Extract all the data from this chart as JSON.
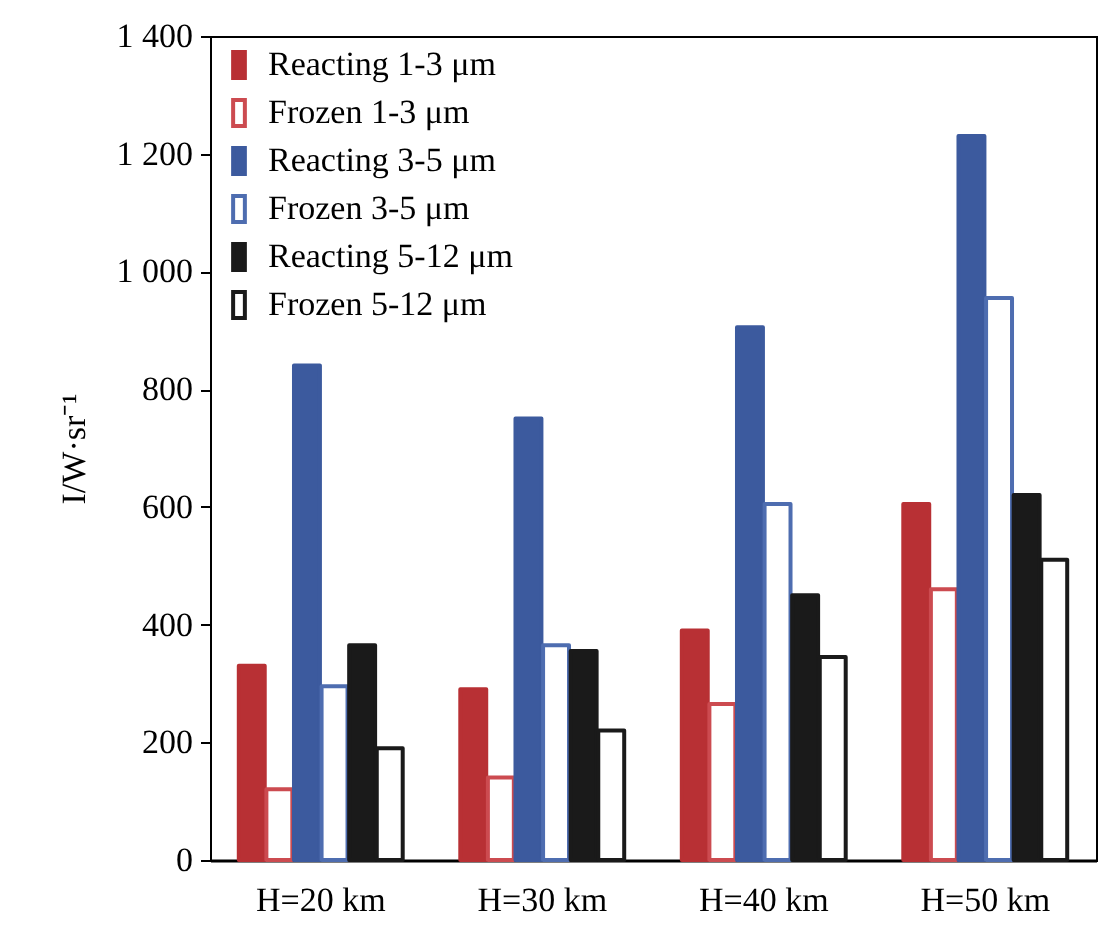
{
  "chart_data": {
    "type": "bar",
    "ylabel": "I/W·sr⁻¹",
    "categories": [
      "H=20 km",
      "H=30 km",
      "H=40 km",
      "H=50 km"
    ],
    "series": [
      {
        "name": "Reacting 1-3 μm",
        "color": "#b83034",
        "values": [
          330,
          290,
          390,
          605
        ]
      },
      {
        "name": "Frozen 1-3 μm",
        "color": "#cc4b50",
        "colors": [
          "#ffffff",
          "#ffffff",
          "#ffffff",
          "#ffffff"
        ],
        "values": [
          120,
          140,
          265,
          460
        ]
      },
      {
        "name": "Reacting 3-5 μm",
        "color": "#3c5a9e",
        "values": [
          840,
          750,
          905,
          1230
        ]
      },
      {
        "name": "Frozen 3-5 μm",
        "color": "#4e6db0",
        "colors": [
          "#ffffff",
          "#ffffff",
          "#ffffff",
          "#ffffff"
        ],
        "values": [
          295,
          365,
          605,
          955
        ]
      },
      {
        "name": "Reacting 5-12 μm",
        "color": "#1a1a1a",
        "values": [
          365,
          355,
          450,
          620
        ]
      },
      {
        "name": "Frozen 5-12 μm",
        "color": "#1a1a1a",
        "colors": [
          "#ffffff",
          "#ffffff",
          "#ffffff",
          "#ffffff"
        ],
        "values": [
          190,
          220,
          345,
          510
        ]
      }
    ],
    "ylim": [
      0,
      1400
    ],
    "yticks": [
      0,
      200,
      400,
      600,
      800,
      {
        "value": 1000,
        "label": "1 000"
      },
      {
        "value": 1200,
        "label": "1 200"
      },
      {
        "value": 1400,
        "label": "1 400"
      }
    ],
    "grid": false,
    "legend": "top left"
  }
}
